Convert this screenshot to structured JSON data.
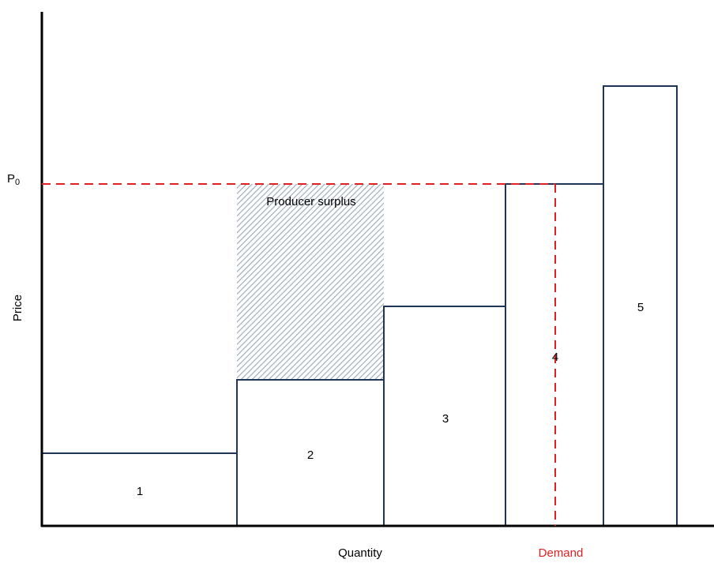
{
  "diagram": {
    "y_axis_label": "Price",
    "x_axis_label": "Quantity",
    "price_marker": {
      "letter": "P",
      "subscript": "0"
    },
    "demand_label": "Demand",
    "shaded_region_label": "Producer surplus",
    "blocks": [
      {
        "label": "1"
      },
      {
        "label": "2"
      },
      {
        "label": "3"
      },
      {
        "label": "4"
      },
      {
        "label": "5"
      }
    ]
  },
  "colors": {
    "block_outline": "#1f3558",
    "axis": "#000000",
    "dashed_line": "#e02020",
    "demand_text": "#e02020",
    "hatch": "#9aa7b5"
  }
}
